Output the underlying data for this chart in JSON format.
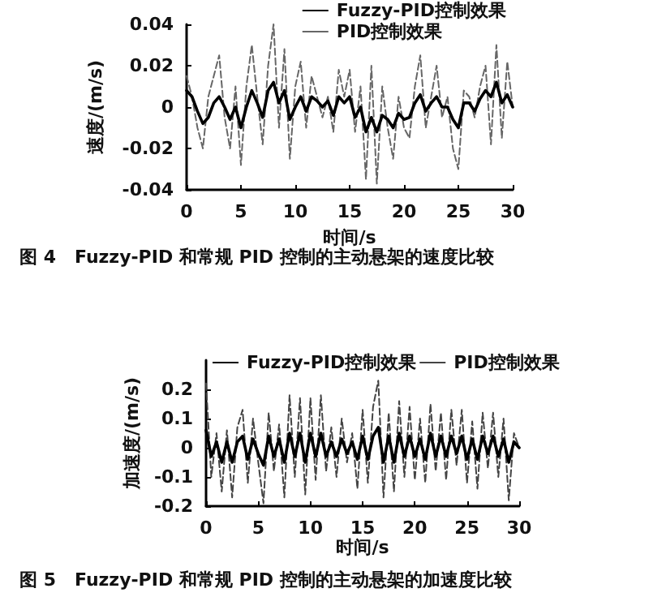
{
  "chart_data": [
    {
      "type": "line",
      "xlabel": "时间/s",
      "ylabel": "速度/(m/s)",
      "annotations": [
        "图 4   Fuzzy-PID 和常规 PID 控制的主动悬架的速度比较"
      ],
      "xlim": [
        0,
        30
      ],
      "xticks": [
        0,
        5,
        10,
        15,
        20,
        25,
        30
      ],
      "ylim": [
        -0.04,
        0.04
      ],
      "yticks": [
        -0.04,
        -0.02,
        0,
        0.02,
        0.04
      ],
      "grid": false,
      "legend": "top right",
      "marker": "none",
      "x": [
        0,
        0.5,
        1,
        1.5,
        2,
        2.5,
        3,
        3.5,
        4,
        4.5,
        5,
        5.5,
        6,
        6.5,
        7,
        7.5,
        8,
        8.5,
        9,
        9.5,
        10,
        10.5,
        11,
        11.5,
        12,
        12.5,
        13,
        13.5,
        14,
        14.5,
        15,
        15.5,
        16,
        16.5,
        17,
        17.5,
        18,
        18.5,
        19,
        19.5,
        20,
        20.5,
        21,
        21.5,
        22,
        22.5,
        23,
        23.5,
        24,
        24.5,
        25,
        25.5,
        26,
        26.5,
        27,
        27.5,
        28,
        28.5,
        29,
        29.5,
        30
      ],
      "series": [
        {
          "name": "Fuzzy-PID控制效果",
          "color": "#000000",
          "line_style": "solid",
          "values": [
            0.008,
            0.005,
            -0.002,
            -0.008,
            -0.005,
            0.002,
            0.005,
            0,
            -0.006,
            0,
            -0.01,
            0,
            0.008,
            0.002,
            -0.005,
            0.008,
            0.012,
            0.002,
            0.008,
            -0.006,
            0,
            0.005,
            -0.002,
            0.005,
            0.003,
            0,
            0.003,
            -0.004,
            0.005,
            0.002,
            0.005,
            -0.005,
            0,
            -0.012,
            -0.005,
            -0.012,
            -0.004,
            -0.006,
            -0.01,
            -0.003,
            -0.006,
            -0.005,
            0.002,
            0.006,
            -0.002,
            0.002,
            0.005,
            0,
            0,
            -0.006,
            -0.01,
            0.002,
            0.002,
            -0.002,
            0.004,
            0.008,
            0.005,
            0.012,
            0.002,
            0.006,
            0
          ]
        },
        {
          "name": "PID控制效果",
          "color": "#666666",
          "line_style": "dashed",
          "values": [
            0.015,
            0.005,
            -0.01,
            -0.02,
            0.005,
            0.015,
            0.025,
            -0.005,
            -0.02,
            0.01,
            -0.028,
            0.01,
            0.03,
            0.005,
            -0.018,
            0.02,
            0.04,
            -0.01,
            0.028,
            -0.025,
            0.01,
            0.022,
            -0.01,
            0.015,
            0.005,
            -0.005,
            0.005,
            -0.012,
            0.018,
            0.005,
            0.018,
            -0.012,
            0.01,
            -0.035,
            0.02,
            -0.037,
            0.01,
            -0.01,
            -0.025,
            0.005,
            -0.01,
            -0.015,
            0.01,
            0.025,
            -0.01,
            0.005,
            0.02,
            -0.005,
            0.005,
            -0.02,
            -0.03,
            0.008,
            0.005,
            -0.005,
            0.01,
            0.02,
            -0.018,
            0.03,
            -0.015,
            0.022,
            0
          ]
        }
      ]
    },
    {
      "type": "line",
      "xlabel": "时间/s",
      "ylabel": "加速度/(m/s)",
      "annotations": [
        "图 5   Fuzzy-PID 和常规 PID 控制的主动悬架的加速度比较"
      ],
      "xlim": [
        0,
        30
      ],
      "xticks": [
        0,
        5,
        10,
        15,
        20,
        25,
        30
      ],
      "ylim": [
        -0.2,
        0.3
      ],
      "yticks": [
        -0.2,
        -0.1,
        0,
        0.1,
        0.2
      ],
      "grid": false,
      "legend": "top",
      "marker": "none",
      "x": [
        0,
        0.5,
        1,
        1.5,
        2,
        2.5,
        3,
        3.5,
        4,
        4.5,
        5,
        5.5,
        6,
        6.5,
        7,
        7.5,
        8,
        8.5,
        9,
        9.5,
        10,
        10.5,
        11,
        11.5,
        12,
        12.5,
        13,
        13.5,
        14,
        14.5,
        15,
        15.5,
        16,
        16.5,
        17,
        17.5,
        18,
        18.5,
        19,
        19.5,
        20,
        20.5,
        21,
        21.5,
        22,
        22.5,
        23,
        23.5,
        24,
        24.5,
        25,
        25.5,
        26,
        26.5,
        27,
        27.5,
        28,
        28.5,
        29,
        29.5,
        30
      ],
      "series": [
        {
          "name": "Fuzzy-PID控制效果",
          "color": "#000000",
          "line_style": "solid",
          "values": [
            0.06,
            -0.03,
            0.02,
            -0.05,
            0.02,
            -0.05,
            0.02,
            0.04,
            -0.04,
            0.03,
            -0.02,
            -0.06,
            0.04,
            -0.03,
            0.03,
            -0.05,
            0.05,
            -0.03,
            0.05,
            -0.05,
            0.05,
            -0.03,
            0.05,
            -0.03,
            0.02,
            -0.03,
            0.03,
            -0.02,
            0.02,
            -0.04,
            0.04,
            -0.04,
            0.04,
            0.07,
            -0.05,
            0.04,
            -0.05,
            0.05,
            -0.03,
            0.04,
            -0.03,
            0.03,
            -0.04,
            0.05,
            -0.03,
            0.04,
            -0.03,
            0.04,
            -0.02,
            0.04,
            -0.04,
            0.03,
            -0.04,
            0.04,
            -0.02,
            0.04,
            -0.03,
            0.03,
            -0.05,
            0.02,
            0
          ]
        },
        {
          "name": "PID控制效果",
          "color": "#444444",
          "line_style": "dashed",
          "values": [
            0.22,
            -0.1,
            0.05,
            -0.15,
            0.06,
            -0.17,
            0.07,
            0.13,
            -0.12,
            0.1,
            -0.05,
            -0.19,
            0.12,
            -0.08,
            0.08,
            -0.17,
            0.18,
            -0.1,
            0.17,
            -0.16,
            0.17,
            -0.11,
            0.18,
            -0.08,
            0.07,
            -0.1,
            0.1,
            -0.05,
            0.05,
            -0.14,
            0.13,
            -0.12,
            0.14,
            0.23,
            -0.17,
            0.12,
            -0.15,
            0.16,
            -0.1,
            0.14,
            -0.11,
            0.1,
            -0.12,
            0.15,
            -0.08,
            0.12,
            -0.11,
            0.13,
            -0.06,
            0.13,
            -0.12,
            0.09,
            -0.14,
            0.12,
            -0.07,
            0.12,
            -0.1,
            0.1,
            -0.18,
            0.05,
            0
          ]
        }
      ]
    }
  ]
}
